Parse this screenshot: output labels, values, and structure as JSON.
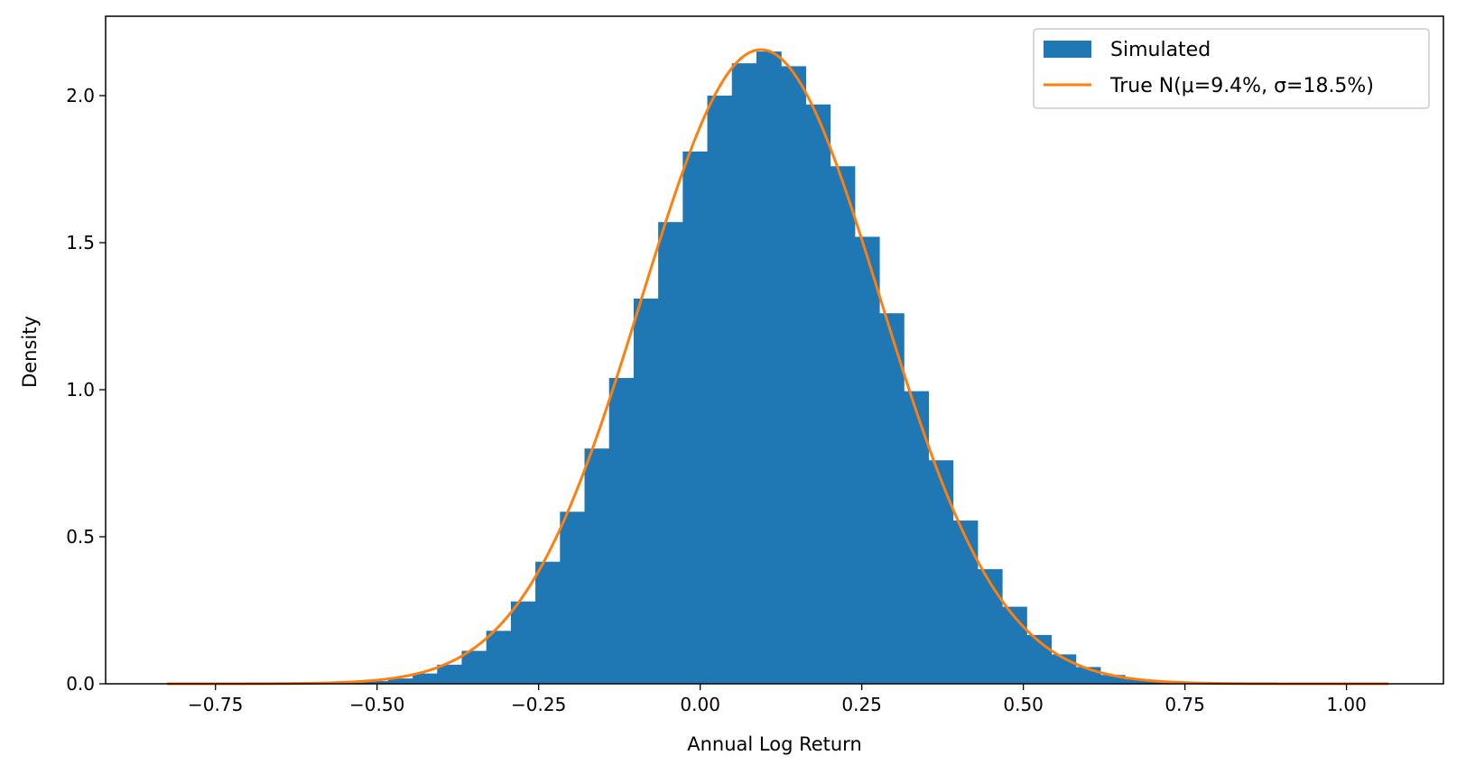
{
  "chart_data": {
    "type": "bar",
    "subtype": "histogram-with-density-curve",
    "title": "",
    "xlabel": "Annual Log Return",
    "ylabel": "Density",
    "xlim": [
      -0.92,
      1.15
    ],
    "ylim": [
      0.0,
      2.27
    ],
    "xticks": [
      -0.75,
      -0.5,
      -0.25,
      0.0,
      0.25,
      0.5,
      0.75,
      1.0
    ],
    "xtick_labels": [
      "−0.75",
      "−0.50",
      "−0.25",
      "0.00",
      "0.25",
      "0.50",
      "0.75",
      "1.00"
    ],
    "yticks": [
      0.0,
      0.5,
      1.0,
      1.5,
      2.0
    ],
    "ytick_labels": [
      "0.0",
      "0.5",
      "1.0",
      "1.5",
      "2.0"
    ],
    "grid": false,
    "legend_position": "top-right",
    "histogram": {
      "name": "Simulated",
      "color": "#1f77b4",
      "bin_edges": [
        -0.825,
        -0.787,
        -0.749,
        -0.711,
        -0.673,
        -0.635,
        -0.597,
        -0.559,
        -0.521,
        -0.483,
        -0.445,
        -0.407,
        -0.369,
        -0.331,
        -0.293,
        -0.255,
        -0.217,
        -0.179,
        -0.141,
        -0.103,
        -0.065,
        -0.027,
        0.011,
        0.049,
        0.087,
        0.125,
        0.163,
        0.201,
        0.239,
        0.277,
        0.315,
        0.353,
        0.391,
        0.429,
        0.467,
        0.505,
        0.543,
        0.581,
        0.619,
        0.657,
        0.695,
        0.733,
        0.771,
        0.809,
        0.847,
        0.885,
        0.923,
        0.961,
        0.999,
        1.037,
        1.075
      ],
      "densities": [
        0.0,
        0.0,
        0.0,
        0.0,
        0.0,
        0.001,
        0.002,
        0.004,
        0.009,
        0.018,
        0.035,
        0.065,
        0.112,
        0.18,
        0.28,
        0.415,
        0.585,
        0.8,
        1.04,
        1.31,
        1.57,
        1.81,
        2.0,
        2.11,
        2.15,
        2.1,
        1.97,
        1.76,
        1.52,
        1.26,
        0.995,
        0.76,
        0.555,
        0.39,
        0.262,
        0.166,
        0.1,
        0.057,
        0.03,
        0.015,
        0.007,
        0.003,
        0.001,
        0.0,
        0.0,
        0.0,
        0.0,
        0.0,
        0.0,
        0.0
      ]
    },
    "curve": {
      "name": "True N(μ=9.4%, σ=18.5%)",
      "color": "#ff7f0e",
      "mu": 0.094,
      "sigma": 0.185,
      "x_range": [
        -0.825,
        1.065
      ]
    }
  }
}
